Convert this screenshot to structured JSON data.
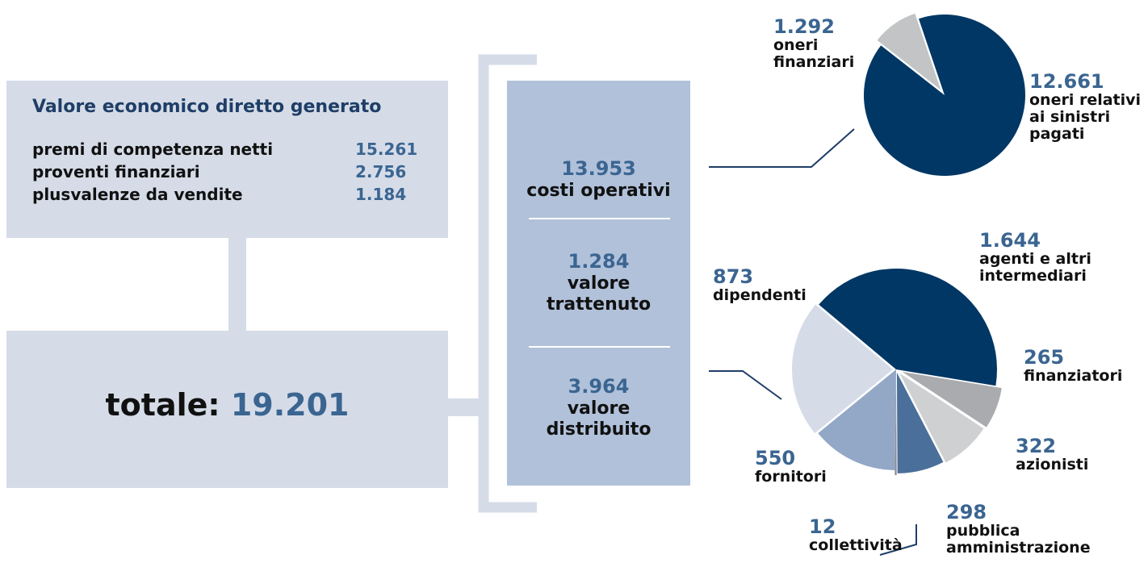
{
  "generated": {
    "title": "Valore economico diretto generato",
    "items": [
      {
        "label": "premi di competenza netti",
        "value": "15.261"
      },
      {
        "label": "proventi finanziari",
        "value": "2.756"
      },
      {
        "label": "plusvalenze da vendite",
        "value": "1.184"
      }
    ]
  },
  "total": {
    "label": "totale:",
    "value": "19.201"
  },
  "breakdown": [
    {
      "value": "13.953",
      "label": "costi operativi"
    },
    {
      "value": "1.284",
      "label": "valore trattenuto"
    },
    {
      "value": "3.964",
      "label": "valore distribuito"
    }
  ],
  "chart_data": [
    {
      "type": "pie",
      "categories": [
        "oneri finanziari",
        "oneri relativi ai sinistri pagati"
      ],
      "values": [
        1292,
        12661
      ],
      "value_labels": [
        "1.292",
        "12.661"
      ],
      "colors": [
        "#c3c4c6",
        "#003764"
      ]
    },
    {
      "type": "pie",
      "categories": [
        "agenti e altri intermediari",
        "finanziatori",
        "azionisti",
        "pubblica amministrazione",
        "collettività",
        "fornitori",
        "dipendenti"
      ],
      "values": [
        1644,
        265,
        322,
        298,
        12,
        550,
        873
      ],
      "value_labels": [
        "1.644",
        "265",
        "322",
        "298",
        "12",
        "550",
        "873"
      ],
      "colors": [
        "#003764",
        "#a9abae",
        "#cfd0d2",
        "#4a6f9a",
        "#8b8d90",
        "#93a7c6",
        "#d5dce8"
      ]
    }
  ]
}
